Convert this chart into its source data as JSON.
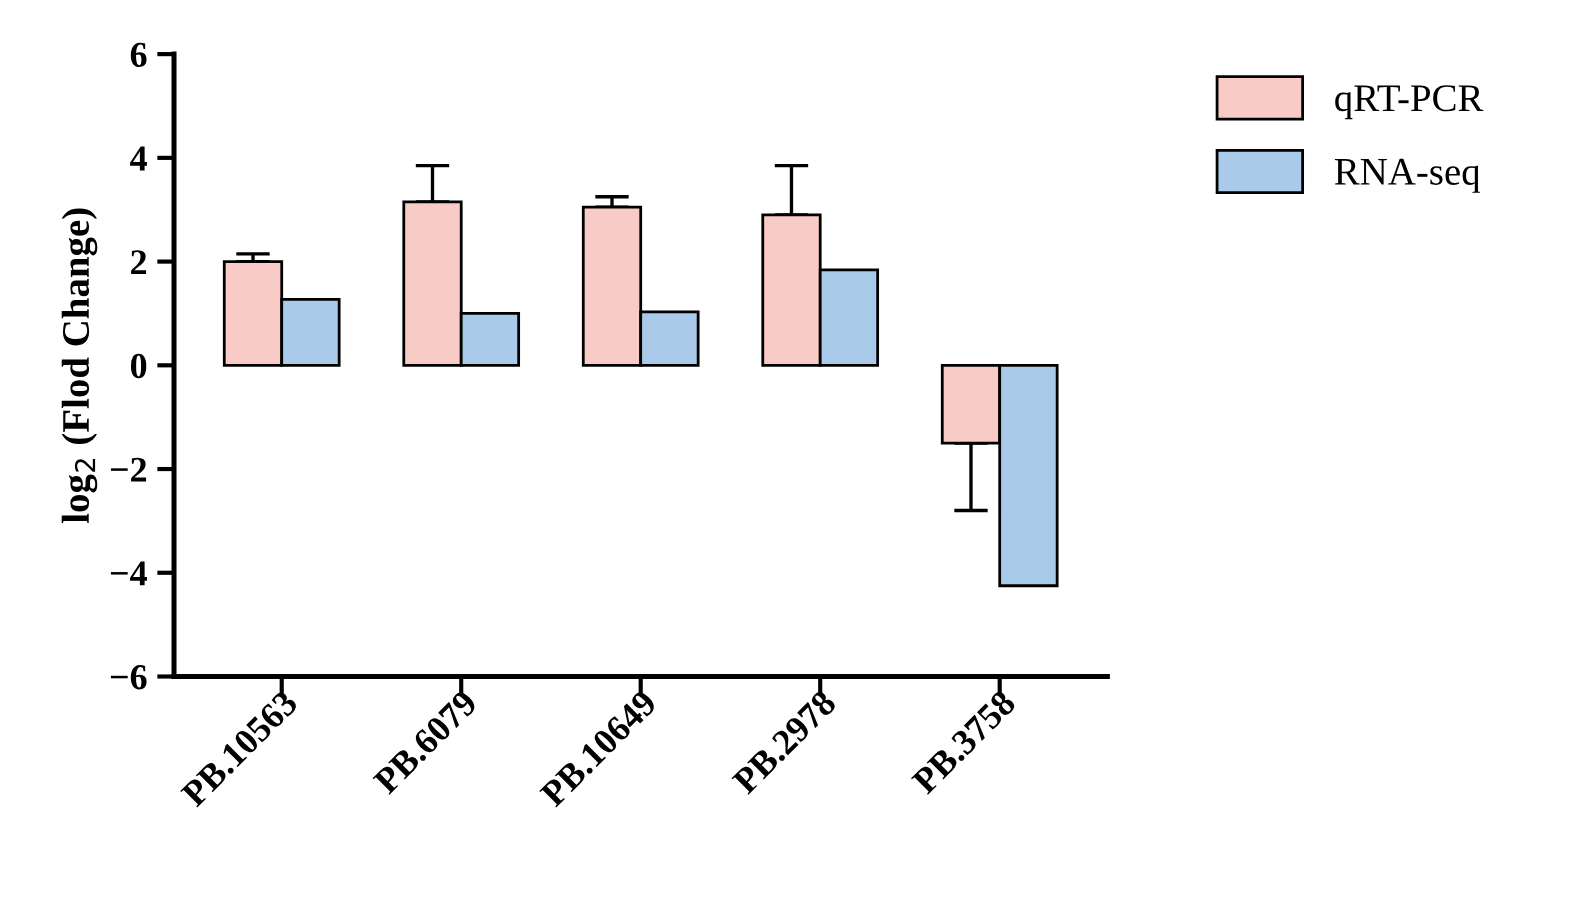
{
  "chart_data": {
    "type": "bar",
    "ylabel": "log$_{2}$ (Flod Change)",
    "categories": [
      "PB.10563",
      "PB.6079",
      "PB.10649",
      "PB.2978",
      "PB.3758"
    ],
    "series": [
      {
        "name": "qRT-PCR",
        "color": "#f9cbc6",
        "values": [
          2.0,
          3.15,
          3.05,
          2.9,
          -1.5
        ],
        "errors": [
          [
            2.0,
            2.15
          ],
          [
            3.15,
            3.85
          ],
          [
            3.05,
            3.25
          ],
          [
            2.9,
            3.85
          ],
          [
            -2.8,
            -1.5
          ]
        ]
      },
      {
        "name": "RNA-seq",
        "color": "#a9cbe9",
        "values": [
          1.27,
          1.0,
          1.03,
          1.84,
          -4.25
        ]
      }
    ],
    "ylim": [
      -6,
      6
    ],
    "yticks": [
      -6,
      -4,
      -2,
      0,
      2,
      4,
      6
    ],
    "grid": false,
    "legend": "top right"
  }
}
